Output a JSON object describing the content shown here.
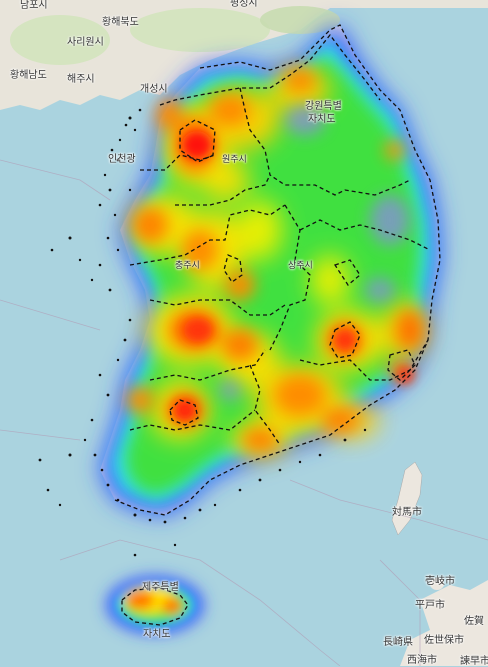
{
  "map": {
    "labels": {
      "hwanghae_n": "황해북도",
      "sariwon": "사리원시",
      "hwanghae_s": "황해남도",
      "haeju": "해주시",
      "kaesong": "개성시",
      "incheon": "인천광",
      "gangwon": "강원특별",
      "jachido": "자치도",
      "wonju": "원주시",
      "chungju": "충주시",
      "sangju": "상주시",
      "jeju": "제주특별",
      "jeju2": "자치도",
      "tsushima": "対馬市",
      "iki": "壱岐市",
      "hirado": "平戸市",
      "saga": "佐賀",
      "sasebo": "佐世保市",
      "nagasaki": "長崎県",
      "saikai": "西海市",
      "isahaya": "諫早市",
      "top_left": "남포시",
      "top_center": "평성시"
    },
    "legend": {
      "heat_colors": [
        "#0000ff",
        "#00ffff",
        "#00ff00",
        "#ffff00",
        "#ff8000",
        "#ff0000"
      ]
    }
  }
}
